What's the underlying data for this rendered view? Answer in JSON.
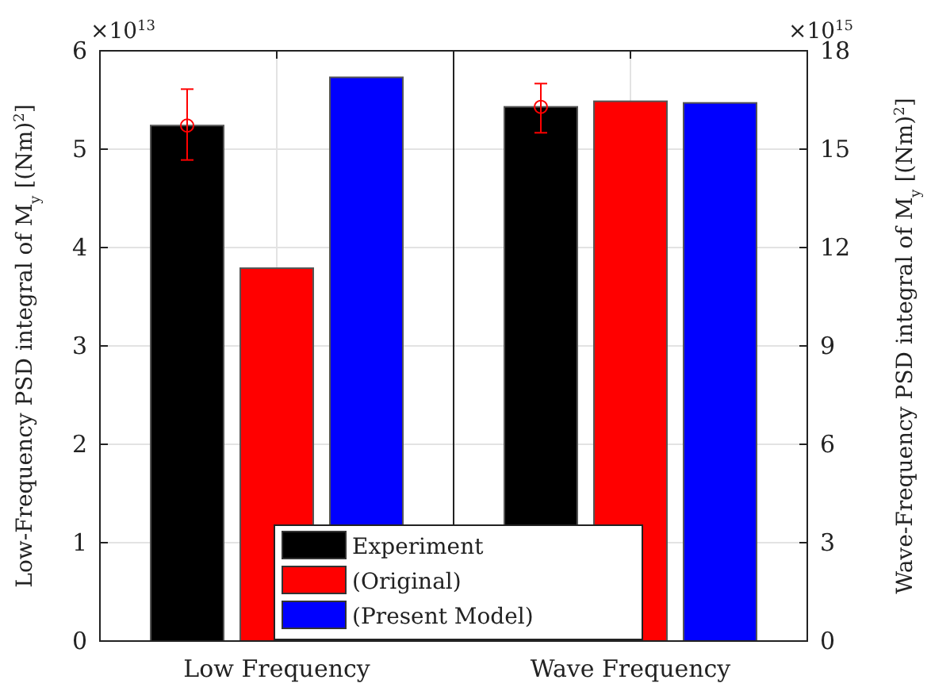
{
  "chart_data": {
    "type": "bar",
    "categories": [
      "Low Frequency",
      "Wave Frequency"
    ],
    "ylabel": "Low-Frequency PSD integral of M$_{y}$ [(Nm)$^{2}$]",
    "y2label": "Wave-Frequency PSD integral of M$_{y}$ [(Nm)$^{2}$]",
    "annotations": [
      "×10$^{13}$",
      "×10$^{15}$"
    ],
    "ylim": [
      0,
      6
    ],
    "yticks": [
      0,
      1,
      2,
      3,
      4,
      5,
      6
    ],
    "y2lim": [
      0,
      18
    ],
    "y2ticks": [
      0,
      3,
      6,
      9,
      12,
      15,
      18
    ],
    "grid": true,
    "legend": "bottom",
    "series": [
      {
        "name": "Experiment",
        "color": "#000000",
        "values": [
          5.24,
          null
        ],
        "errors": [
          [
            4.89,
            5.61
          ],
          null
        ],
        "marker": "circle"
      },
      {
        "name": "(Original)",
        "color": "#ff0000",
        "values": [
          3.79,
          null
        ]
      },
      {
        "name": "(Present Model)",
        "color": "#0000ff",
        "values": [
          5.73,
          null
        ]
      },
      {
        "color": "#000000",
        "values": [
          null,
          16.29
        ],
        "axis": "y2",
        "errors": [
          null,
          [
            15.5,
            17.0
          ]
        ],
        "marker": "circle"
      },
      {
        "color": "#ff0000",
        "values": [
          null,
          16.46
        ],
        "axis": "y2"
      },
      {
        "color": "#0000ff",
        "values": [
          null,
          16.41
        ],
        "axis": "y2"
      }
    ]
  }
}
